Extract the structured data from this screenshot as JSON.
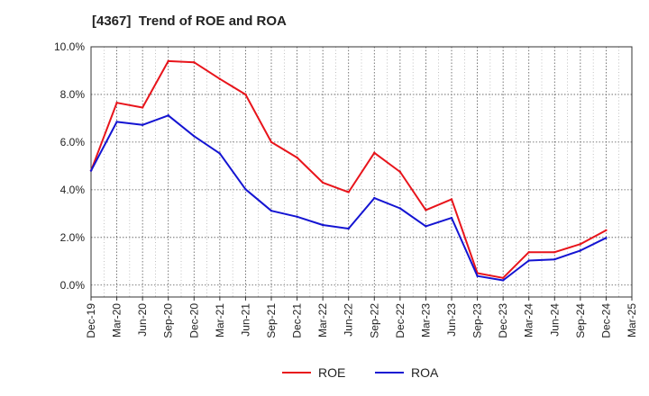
{
  "chart_data": {
    "type": "line",
    "title": "[4367]  Trend of ROE and ROA",
    "xlabel": "",
    "ylabel": "",
    "categories": [
      "Dec-19",
      "Mar-20",
      "Jun-20",
      "Sep-20",
      "Dec-20",
      "Mar-21",
      "Jun-21",
      "Sep-21",
      "Dec-21",
      "Mar-22",
      "Jun-22",
      "Sep-22",
      "Dec-22",
      "Mar-23",
      "Jun-23",
      "Sep-23",
      "Dec-23",
      "Mar-24",
      "Jun-24",
      "Sep-24",
      "Dec-24",
      "Mar-25"
    ],
    "y_ticks": [
      "0.0%",
      "2.0%",
      "4.0%",
      "6.0%",
      "8.0%",
      "10.0%"
    ],
    "ylim": [
      -0.5,
      10.0
    ],
    "grid": true,
    "legend_position": "bottom",
    "series": [
      {
        "name": "ROE",
        "color": "#e8141b",
        "values": [
          4.8,
          7.65,
          7.45,
          9.4,
          9.35,
          8.65,
          8.0,
          6.0,
          5.35,
          4.3,
          3.9,
          5.55,
          4.75,
          3.15,
          3.6,
          0.5,
          0.3,
          1.38,
          1.38,
          1.72,
          2.3,
          null
        ]
      },
      {
        "name": "ROA",
        "color": "#1414d2",
        "values": [
          4.8,
          6.85,
          6.72,
          7.12,
          6.25,
          5.52,
          4.02,
          3.12,
          2.87,
          2.52,
          2.37,
          3.65,
          3.22,
          2.47,
          2.82,
          0.38,
          0.2,
          1.03,
          1.08,
          1.45,
          1.98,
          null
        ]
      }
    ]
  }
}
